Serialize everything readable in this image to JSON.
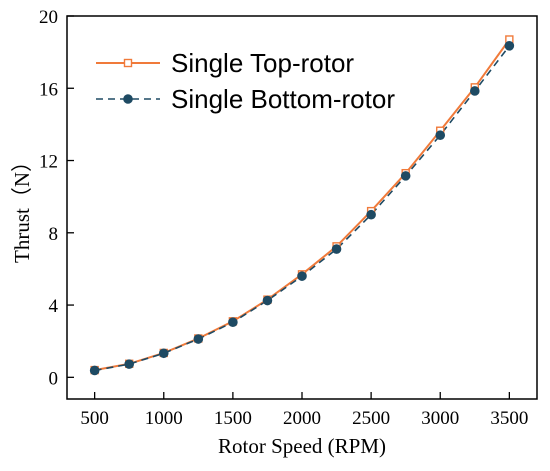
{
  "chart_data": {
    "type": "line",
    "xlabel": "Rotor Speed (RPM)",
    "ylabel": "Thrust（N）",
    "xlim": [
      300,
      3700
    ],
    "ylim": [
      -1.2,
      20
    ],
    "xticks": [
      500,
      1000,
      1500,
      2000,
      2500,
      3000,
      3500
    ],
    "xtick_labels": [
      "500",
      "1000",
      "1500",
      "2000",
      "2500",
      "3000",
      "3500"
    ],
    "yticks": [
      0,
      4,
      8,
      12,
      16,
      20
    ],
    "ytick_labels": [
      "0",
      "4",
      "8",
      "12",
      "16",
      "20"
    ],
    "grid": false,
    "legend_position": "top-left",
    "x": [
      500,
      750,
      1000,
      1250,
      1500,
      1750,
      2000,
      2250,
      2500,
      2750,
      3000,
      3250,
      3500
    ],
    "series": [
      {
        "name": "Single Top-rotor",
        "color": "#f07a3a",
        "marker": "open-square",
        "line": "solid",
        "values": [
          0.4,
          0.75,
          1.35,
          2.15,
          3.1,
          4.3,
          5.7,
          7.25,
          9.2,
          11.3,
          13.65,
          16.05,
          18.7
        ]
      },
      {
        "name": "Single Bottom-rotor",
        "color": "#1e4a63",
        "marker": "filled-circle",
        "line": "dashed",
        "values": [
          0.38,
          0.73,
          1.33,
          2.12,
          3.05,
          4.25,
          5.6,
          7.1,
          9.0,
          11.15,
          13.4,
          15.85,
          18.35
        ]
      }
    ]
  }
}
